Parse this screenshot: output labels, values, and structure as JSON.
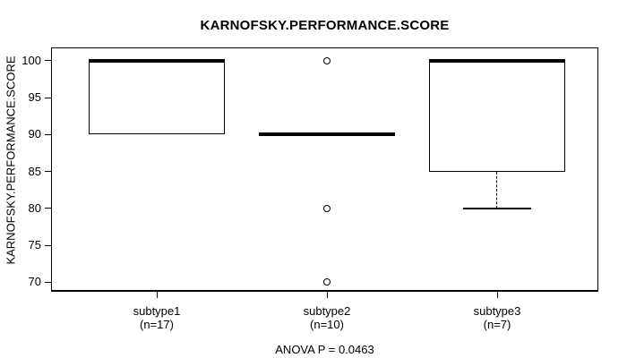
{
  "chart_data": {
    "type": "boxplot",
    "title": "KARNOFSKY.PERFORMANCE.SCORE",
    "ylabel": "KARNOFSKY.PERFORMANCE.SCORE",
    "annotation": "ANOVA P = 0.0463",
    "grid": false,
    "legend": "none",
    "y_ticks": [
      70,
      75,
      80,
      85,
      90,
      95,
      100
    ],
    "ylim": [
      68.7,
      101.8
    ],
    "line_color": "#000000",
    "background_color": "#ffffff",
    "groups": [
      {
        "label": "subtype1",
        "sublabel": "(n=17)",
        "n": 17,
        "whisker_low": 90,
        "q1": 90,
        "median": 100,
        "q3": 100,
        "whisker_high": 100,
        "outliers": []
      },
      {
        "label": "subtype2",
        "sublabel": "(n=10)",
        "n": 10,
        "whisker_low": 90,
        "q1": 90,
        "median": 90,
        "q3": 90,
        "whisker_high": 90,
        "outliers": [
          100,
          80,
          70
        ]
      },
      {
        "label": "subtype3",
        "sublabel": "(n=7)",
        "n": 7,
        "whisker_low": 80,
        "q1": 85,
        "median": 100,
        "q3": 100,
        "whisker_high": 100,
        "outliers": []
      }
    ]
  }
}
